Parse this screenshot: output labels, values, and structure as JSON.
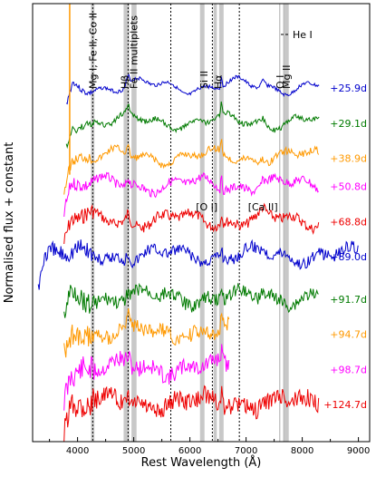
{
  "chart_data": {
    "type": "line",
    "xlabel": "Rest Wavelength (Å)",
    "ylabel": "Normalised flux + constant",
    "xlim": [
      3200,
      9200
    ],
    "xticks": [
      4000,
      5000,
      6000,
      7000,
      8000,
      9000
    ],
    "y_ticks_labeled": false,
    "grid": false,
    "shaded_bands": [
      {
        "x0": 4240,
        "x1": 4300
      },
      {
        "x0": 4820,
        "x1": 4920
      },
      {
        "x0": 4960,
        "x1": 5050
      },
      {
        "x0": 6180,
        "x1": 6260
      },
      {
        "x0": 6420,
        "x1": 6480
      },
      {
        "x0": 6520,
        "x1": 6600
      },
      {
        "x0": 7680,
        "x1": 7760
      }
    ],
    "dotted_lines": [
      4270,
      4900,
      5660,
      6400,
      6880
    ],
    "solid_lines": [
      7600,
      7670
    ],
    "line_ids": [
      {
        "label": "Mg I, Fe II, Co II",
        "x": 4270,
        "rotated": true
      },
      {
        "label": "Hβ",
        "x": 4840,
        "rotated": true
      },
      {
        "label": "Fe II multiplets",
        "x": 5000,
        "rotated": true
      },
      {
        "label": "Si II",
        "x": 6250,
        "rotated": true
      },
      {
        "label": "Hα",
        "x": 6500,
        "rotated": true
      },
      {
        "label": "O I",
        "x": 7600,
        "rotated": true
      },
      {
        "label": "Mg II",
        "x": 7720,
        "rotated": true
      },
      {
        "label": "[O I]",
        "x": 6300,
        "rotated": false
      },
      {
        "label": "[Ca II]",
        "x": 7300,
        "rotated": false
      }
    ],
    "legend": {
      "label": "He I",
      "style": "dashed",
      "position": "top-right"
    },
    "series": [
      {
        "epoch": "+25.9d",
        "color": "#0000cc",
        "x_range": [
          3800,
          8300
        ],
        "offset": 9.0
      },
      {
        "epoch": "+29.1d",
        "color": "#007a00",
        "x_range": [
          3800,
          8300
        ],
        "offset": 8.0
      },
      {
        "epoch": "+38.9d",
        "color": "#ff9900",
        "x_range": [
          3760,
          8300
        ],
        "offset": 7.0
      },
      {
        "epoch": "+50.8d",
        "color": "#ff00ff",
        "x_range": [
          3760,
          8300
        ],
        "offset": 6.2
      },
      {
        "epoch": "+68.8d",
        "color": "#ee0000",
        "x_range": [
          3760,
          8300
        ],
        "offset": 5.2
      },
      {
        "epoch": "+89.0d",
        "color": "#0000cc",
        "x_range": [
          3300,
          9000
        ],
        "offset": 4.2
      },
      {
        "epoch": "+91.7d",
        "color": "#007a00",
        "x_range": [
          3760,
          8300
        ],
        "offset": 3.0
      },
      {
        "epoch": "+94.7d",
        "color": "#ff9900",
        "x_range": [
          3760,
          6700
        ],
        "offset": 2.0
      },
      {
        "epoch": "+98.7d",
        "color": "#ff00ff",
        "x_range": [
          3760,
          6700
        ],
        "offset": 1.0
      },
      {
        "epoch": "+124.7d",
        "color": "#ee0000",
        "x_range": [
          3760,
          8300
        ],
        "offset": 0.0
      }
    ]
  }
}
